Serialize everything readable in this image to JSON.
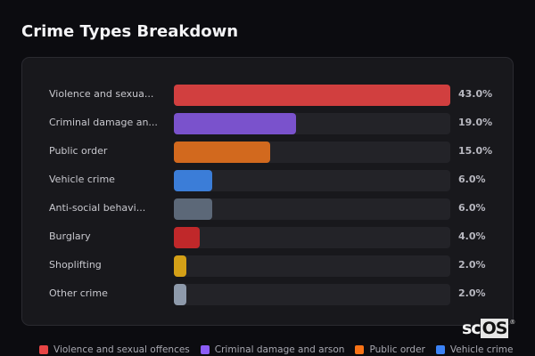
{
  "title": "Crime Types Breakdown",
  "chart_data": {
    "type": "bar",
    "orientation": "horizontal",
    "title": "Crime Types Breakdown",
    "categories": [
      "Violence and sexual offences",
      "Criminal damage and arson",
      "Public order",
      "Vehicle crime",
      "Anti-social behaviour",
      "Burglary",
      "Shoplifting",
      "Other crime"
    ],
    "display_labels": [
      "Violence and sexua...",
      "Criminal damage an...",
      "Public order",
      "Vehicle crime",
      "Anti-social behavi...",
      "Burglary",
      "Shoplifting",
      "Other crime"
    ],
    "values": [
      43.0,
      19.0,
      15.0,
      6.0,
      6.0,
      4.0,
      2.0,
      2.0
    ],
    "value_labels": [
      "43.0%",
      "19.0%",
      "15.0%",
      "6.0%",
      "6.0%",
      "4.0%",
      "2.0%",
      "2.0%"
    ],
    "colors": [
      "#d13f3f",
      "#7a52cc",
      "#d2691e",
      "#3b7dd8",
      "#5c6878",
      "#c0282a",
      "#d4a017",
      "#8e9aab"
    ],
    "scale_max": 43.0,
    "unit": "%",
    "xlabel": "",
    "ylabel": "",
    "grid": false,
    "legend_position": "bottom"
  },
  "legend": [
    {
      "label": "Violence and sexual offences",
      "color": "#e84545"
    },
    {
      "label": "Criminal damage and arson",
      "color": "#8b5cf6"
    },
    {
      "label": "Public order",
      "color": "#f97316"
    },
    {
      "label": "Vehicle crime",
      "color": "#3b82f6"
    }
  ],
  "watermark": {
    "sc": "sc",
    "os": "OS",
    "reg": "®"
  }
}
